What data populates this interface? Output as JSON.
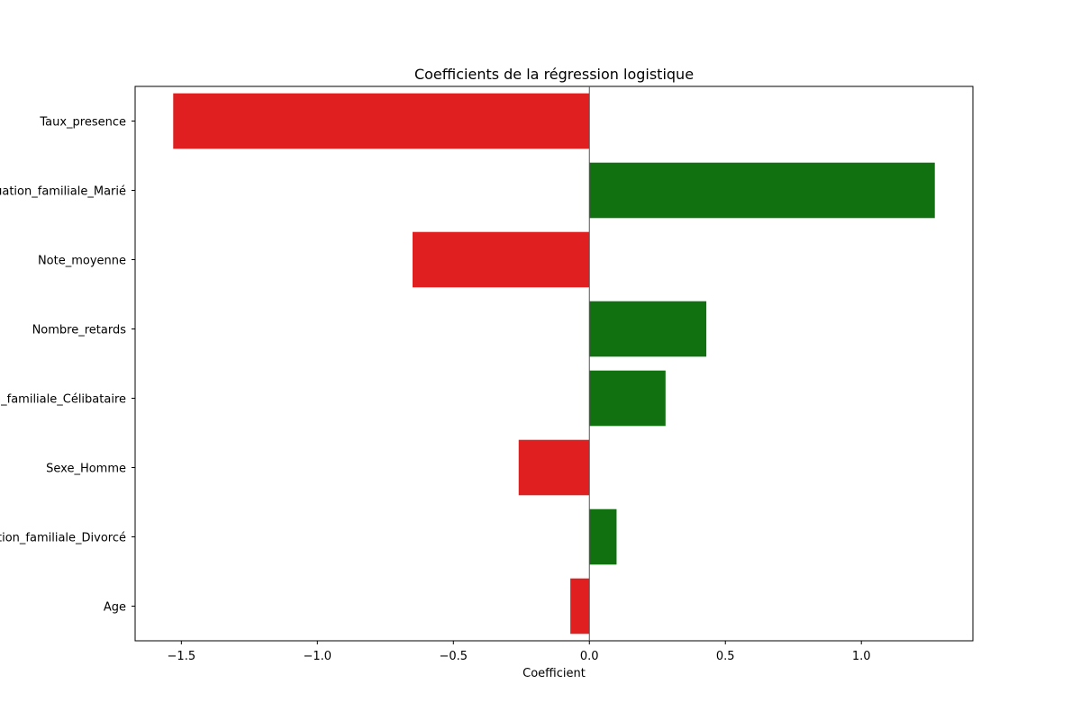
{
  "chart_data": {
    "type": "bar",
    "orientation": "horizontal",
    "title": "Coefficients de la régression logistique",
    "xlabel": "Coefficient",
    "ylabel": "",
    "categories": [
      "Taux_presence",
      "Situation_familiale_Marié",
      "Note_moyenne",
      "Nombre_retards",
      "Situation_familiale_Célibataire",
      "Sexe_Homme",
      "Situation_familiale_Divorcé",
      "Age"
    ],
    "values": [
      -1.53,
      1.27,
      -0.65,
      0.43,
      0.28,
      -0.26,
      0.1,
      -0.07
    ],
    "xlim": [
      -1.67,
      1.41
    ],
    "xticks": [
      -1.5,
      -1.0,
      -0.5,
      0.0,
      0.5,
      1.0
    ],
    "xtick_labels": [
      "−1.5",
      "−1.0",
      "−0.5",
      "0.0",
      "0.5",
      "1.0"
    ],
    "grid": false,
    "reference_line": 0,
    "colors": {
      "negative": "#e02020",
      "positive": "#117111",
      "reference_line": "#555555"
    }
  }
}
